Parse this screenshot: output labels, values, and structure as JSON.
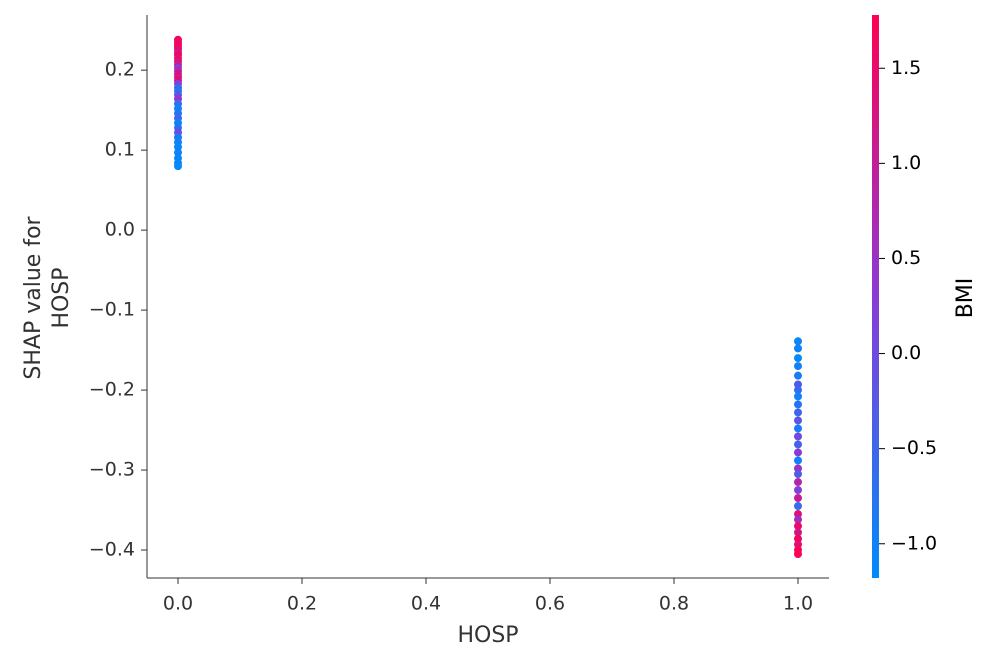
{
  "chart_data": {
    "type": "scatter",
    "xlabel": "HOSP",
    "ylabel": [
      "SHAP value for",
      "HOSP"
    ],
    "colorbar_label": "BMI",
    "colormap": [
      "#008bfb",
      "#8a3bd6",
      "#ff0052"
    ],
    "x": [
      0,
      0,
      0,
      0,
      0,
      0,
      0,
      0,
      0,
      0,
      0,
      0,
      0,
      0,
      0,
      0,
      0,
      0,
      0,
      0,
      0,
      0,
      0,
      0,
      0,
      0,
      0,
      0,
      0,
      0,
      0,
      0,
      0,
      0,
      1,
      1,
      1,
      1,
      1,
      1,
      1,
      1,
      1,
      1,
      1,
      1,
      1,
      1,
      1,
      1,
      1,
      1,
      1,
      1,
      1,
      1,
      1,
      1,
      1,
      1,
      1,
      1,
      1,
      1
    ],
    "y": [
      0.238,
      0.235,
      0.232,
      0.229,
      0.226,
      0.222,
      0.219,
      0.215,
      0.211,
      0.207,
      0.203,
      0.199,
      0.195,
      0.191,
      0.187,
      0.183,
      0.178,
      0.174,
      0.169,
      0.164,
      0.158,
      0.152,
      0.146,
      0.14,
      0.134,
      0.128,
      0.122,
      0.116,
      0.11,
      0.104,
      0.097,
      0.09,
      0.084,
      0.08,
      -0.139,
      -0.148,
      -0.16,
      -0.17,
      -0.182,
      -0.193,
      -0.2,
      -0.208,
      -0.218,
      -0.228,
      -0.238,
      -0.248,
      -0.258,
      -0.268,
      -0.278,
      -0.288,
      -0.298,
      -0.305,
      -0.315,
      -0.325,
      -0.335,
      -0.345,
      -0.355,
      -0.362,
      -0.37,
      -0.378,
      -0.386,
      -0.393,
      -0.4,
      -0.405
    ],
    "color_values": [
      1.7,
      1.6,
      1.5,
      1.7,
      1.4,
      1.2,
      1.6,
      1.5,
      1.3,
      1.1,
      0.3,
      0.8,
      1.4,
      1.0,
      1.5,
      0.2,
      -0.4,
      -0.9,
      -0.2,
      0.4,
      -0.6,
      -1.0,
      -0.8,
      -0.5,
      -1.1,
      -0.7,
      0.0,
      -0.9,
      -1.0,
      -1.1,
      -1.0,
      -1.1,
      -1.1,
      -1.15,
      -1.1,
      -1.0,
      -1.1,
      -1.0,
      -0.9,
      -0.3,
      -0.6,
      -1.0,
      -0.8,
      -0.5,
      -0.2,
      -0.9,
      0.0,
      -0.4,
      0.3,
      -1.0,
      0.5,
      -0.3,
      0.8,
      0.2,
      1.0,
      -0.6,
      1.3,
      0.6,
      1.5,
      1.2,
      1.6,
      1.4,
      1.7,
      1.7
    ],
    "xlim": [
      -0.05,
      1.05
    ],
    "xticks": [
      {
        "value": 0,
        "label": "0.0"
      },
      0.2,
      0.4,
      0.6,
      0.8,
      {
        "value": 1,
        "label": "1.0"
      }
    ],
    "ylim": [
      -0.435,
      0.269
    ],
    "yticks": [
      {
        "value": -0.4,
        "label": "−0.4"
      },
      {
        "value": -0.3,
        "label": "−0.3"
      },
      {
        "value": -0.2,
        "label": "−0.2"
      },
      {
        "value": -0.1,
        "label": "−0.1"
      },
      {
        "value": 0,
        "label": "0.0"
      },
      0.1,
      0.2
    ],
    "clim": [
      -1.18,
      1.78
    ],
    "cticks": [
      {
        "value": -1,
        "label": "−1.0"
      },
      {
        "value": -0.5,
        "label": "−0.5"
      },
      {
        "value": 0,
        "label": "0.0"
      },
      0.5,
      {
        "value": 1,
        "label": "1.0"
      },
      1.5
    ]
  }
}
